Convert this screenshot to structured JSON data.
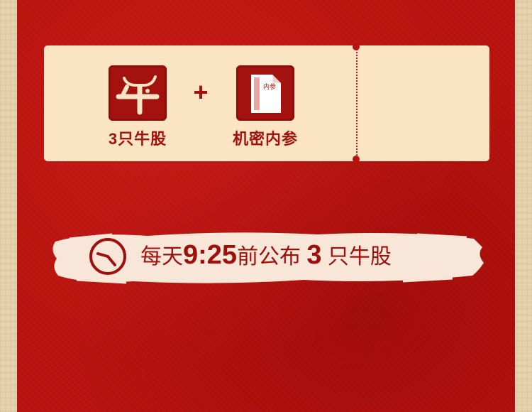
{
  "ticket": {
    "benefits": [
      {
        "label": "3只牛股",
        "icon": "bull-icon"
      },
      {
        "label": "机密内参",
        "icon": "document-icon",
        "doc_tag": "内参"
      }
    ],
    "plus": "+"
  },
  "banner": {
    "icon": "clock-icon",
    "prefix": "每天",
    "time": "9:25",
    "middle": "前公布",
    "count": "3",
    "suffix": "只牛股"
  },
  "colors": {
    "accent_red": "#b9140f",
    "ticket_cream": "#fbe4c4",
    "frame_paper": "#e6d3ab"
  }
}
